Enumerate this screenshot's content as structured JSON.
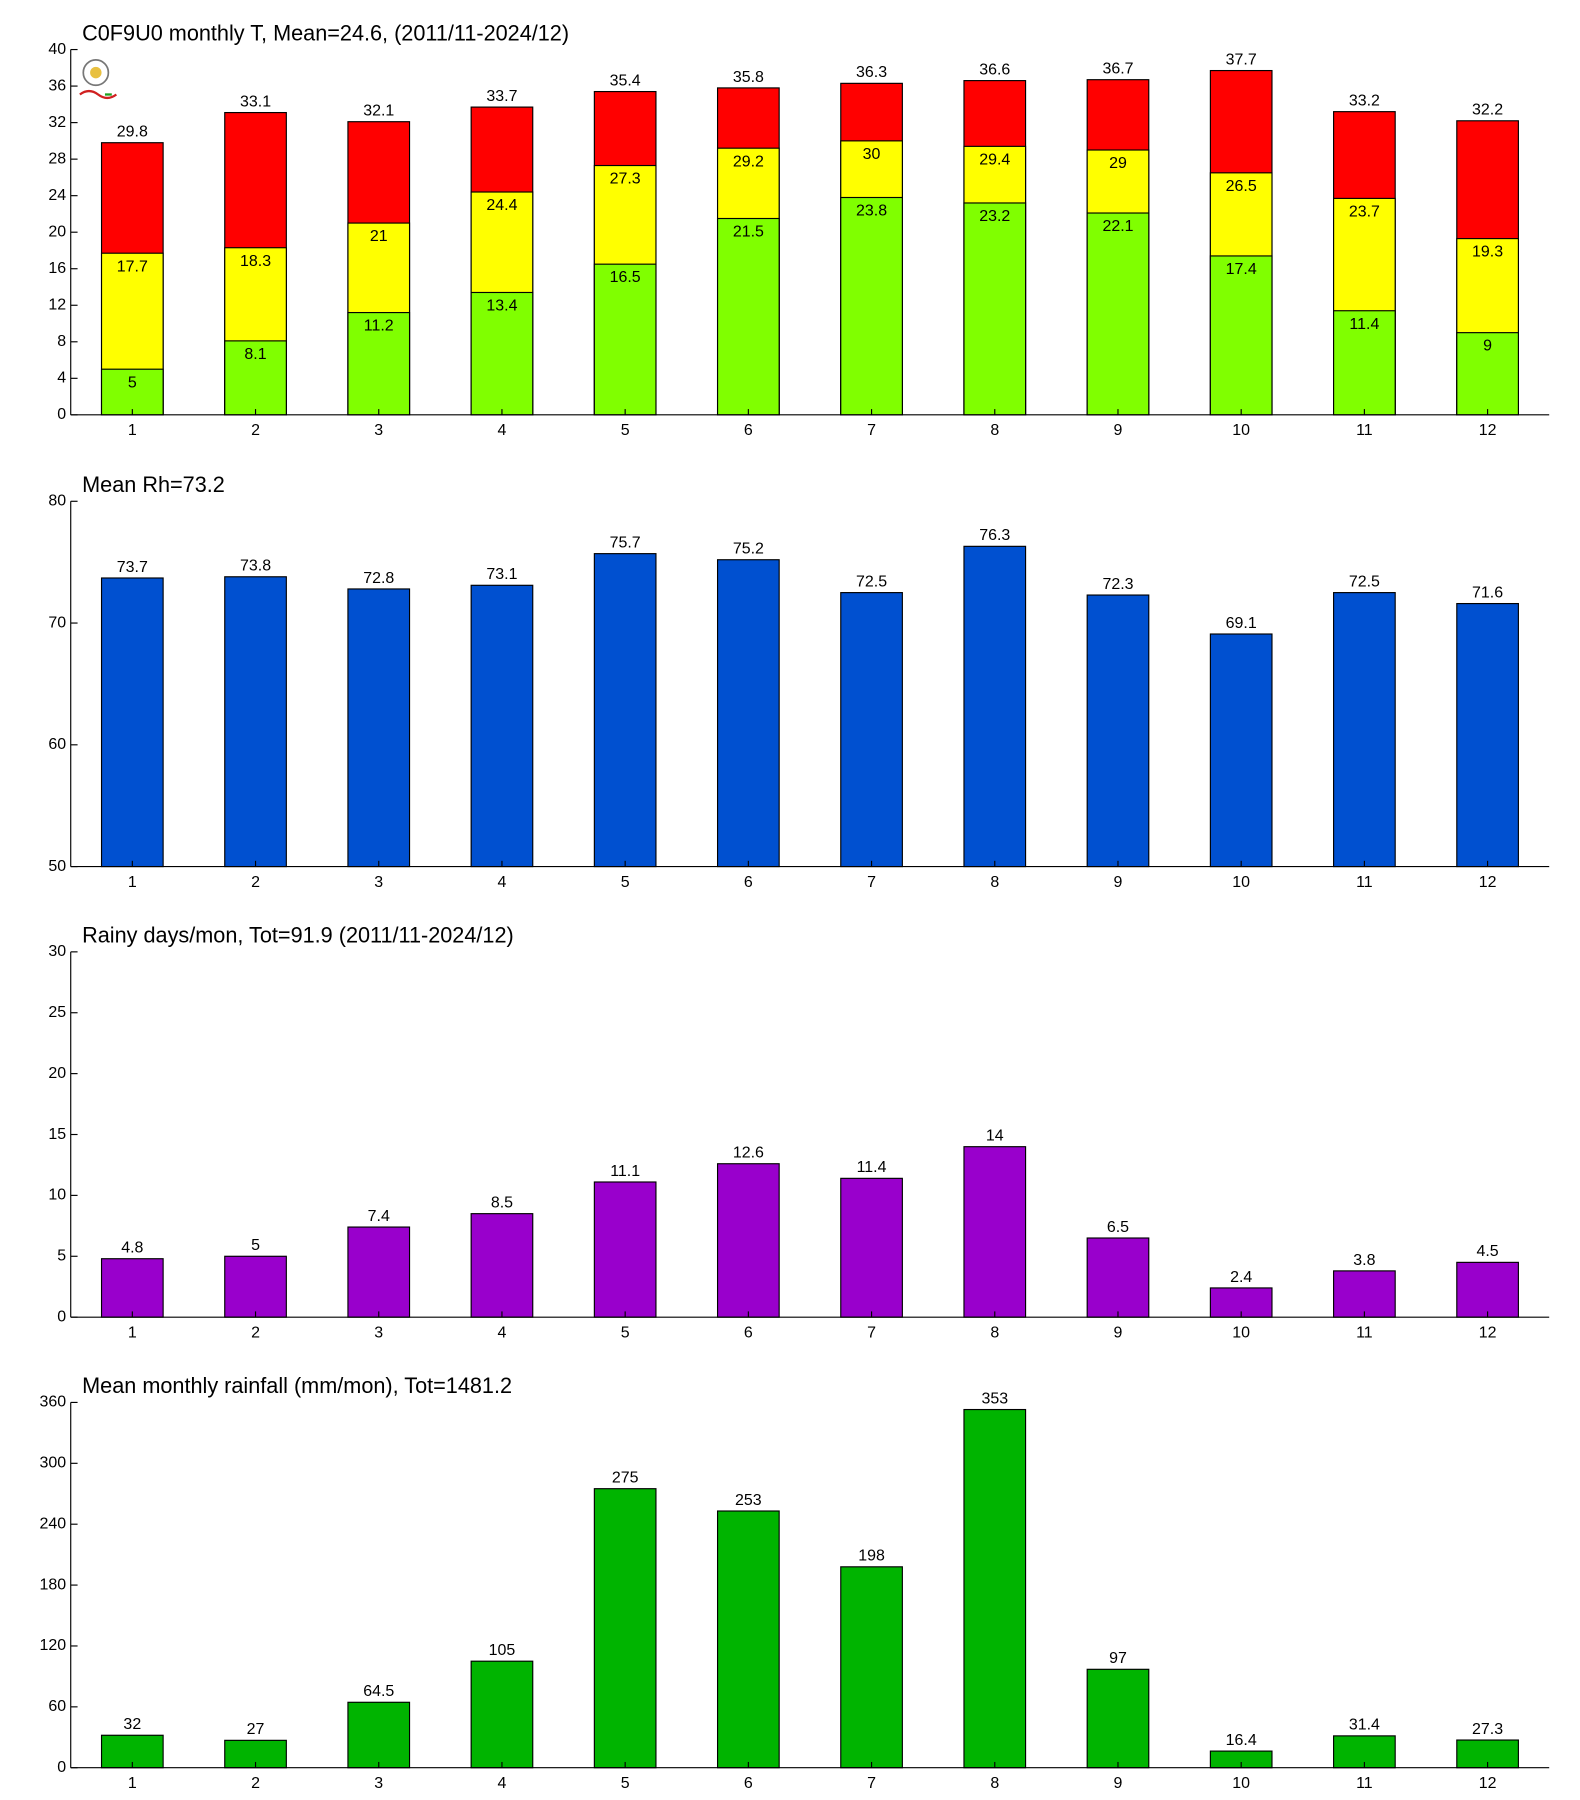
{
  "chart_data": [
    {
      "type": "bar",
      "title": "C0F9U0 monthly T, Mean=24.6, (2011/11-2024/12)",
      "categories": [
        "1",
        "2",
        "3",
        "4",
        "5",
        "6",
        "7",
        "8",
        "9",
        "10",
        "11",
        "12"
      ],
      "series": [
        {
          "color": "#ff0000",
          "values": [
            29.8,
            33.1,
            32.1,
            33.7,
            35.4,
            35.8,
            36.3,
            36.6,
            36.7,
            37.7,
            33.2,
            32.2
          ]
        },
        {
          "color": "#ffff00",
          "values": [
            17.7,
            18.3,
            21,
            24.4,
            27.3,
            29.2,
            30,
            29.4,
            29,
            26.5,
            23.7,
            19.3
          ]
        },
        {
          "color": "#80ff00",
          "values": [
            5,
            8.1,
            11.2,
            13.4,
            16.5,
            21.5,
            23.8,
            23.2,
            22.1,
            17.4,
            11.4,
            9
          ]
        }
      ],
      "ylim": [
        0,
        40
      ],
      "yticks": [
        0,
        4,
        8,
        12,
        16,
        20,
        24,
        28,
        32,
        36,
        40
      ]
    },
    {
      "type": "bar",
      "title": "Mean Rh=73.2",
      "categories": [
        "1",
        "2",
        "3",
        "4",
        "5",
        "6",
        "7",
        "8",
        "9",
        "10",
        "11",
        "12"
      ],
      "series": [
        {
          "color": "#0050d0",
          "values": [
            73.7,
            73.8,
            72.8,
            73.1,
            75.7,
            75.2,
            72.5,
            76.3,
            72.3,
            69.1,
            72.5,
            71.6
          ]
        }
      ],
      "ylim": [
        50,
        80
      ],
      "yticks": [
        50,
        60,
        70,
        80
      ]
    },
    {
      "type": "bar",
      "title": "Rainy days/mon, Tot=91.9 (2011/11-2024/12)",
      "categories": [
        "1",
        "2",
        "3",
        "4",
        "5",
        "6",
        "7",
        "8",
        "9",
        "10",
        "11",
        "12"
      ],
      "series": [
        {
          "color": "#9900cc",
          "values": [
            4.8,
            5,
            7.4,
            8.5,
            11.1,
            12.6,
            11.4,
            14,
            6.5,
            2.4,
            3.8,
            4.5
          ]
        }
      ],
      "ylim": [
        0,
        30
      ],
      "yticks": [
        0,
        5,
        10,
        15,
        20,
        25,
        30
      ]
    },
    {
      "type": "bar",
      "title": "Mean monthly rainfall (mm/mon), Tot=1481.2",
      "categories": [
        "1",
        "2",
        "3",
        "4",
        "5",
        "6",
        "7",
        "8",
        "9",
        "10",
        "11",
        "12"
      ],
      "series": [
        {
          "color": "#00b400",
          "values": [
            32,
            27,
            64.5,
            105,
            275,
            253,
            198,
            353,
            97,
            16.4,
            31.4,
            27.3
          ]
        }
      ],
      "ylim": [
        0,
        360
      ],
      "yticks": [
        0,
        60,
        120,
        180,
        240,
        300,
        360
      ]
    }
  ]
}
